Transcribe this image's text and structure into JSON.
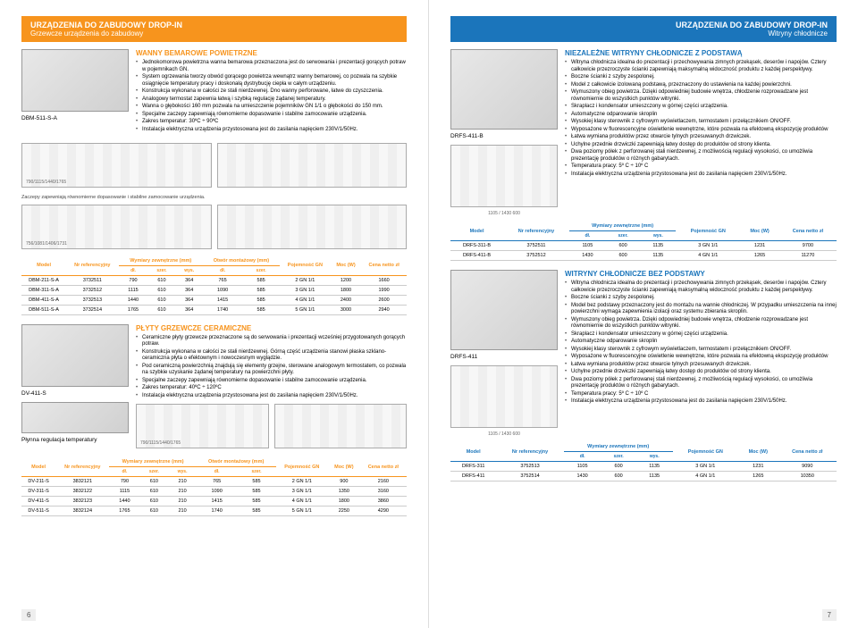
{
  "left": {
    "header_title": "URZĄDZENIA DO ZABUDOWY DROP-IN",
    "header_sub": "Grzewcze urządzenia do zabudowy",
    "sec1": {
      "title": "WANNY BEMAROWE POWIETRZNE",
      "label": "DBM-511-S-A",
      "bullets": [
        "Jednokomorowa powietrzna wanna bemarowa przeznaczona jest do serwowania i prezentacji gorących potraw w pojemnikach GN.",
        "System ogrzewania tworzy obwód gorącego powietrza wewnątrz wanny bemarowej, co pozwala na szybkie osiągnięcie temperatury pracy i doskonałą dystrybucję ciepła w całym urządzeniu.",
        "Konstrukcja wykonana w całości ze stali nierdzewnej. Dno wanny perforowane, łatwe do czyszczenia.",
        "Analogowy termostat zapewnia łatwą i szybką regulację żądanej temperatury.",
        "Wanna o głębokości 160 mm pozwala na umieszczenie pojemników GN 1/1 o głębokości do 150 mm.",
        "Specjalne zaczepy zapewniają równomierne dopasowanie i stabilne zamocowanie urządzenia.",
        "Zakres temperatur: 30ºC ÷ 90ºC",
        "Instalacja elektryczna urządzenia przystosowana jest do zasilania napięciem 230V/1/50Hz."
      ],
      "diag1_dim": "790/1115/1440/1765",
      "diag2_dim": "756/1081/1406/1731",
      "diag_note": "Zaczepy zapewniają równomierne dopasowanie i stabilne zamocowanie urządzenia."
    },
    "table1": {
      "cols_top": [
        "Model",
        "Nr referencyjny",
        "Wymiary zewnętrzne (mm)",
        "Otwór montażowy (mm)",
        "Pojemność GN",
        "Moc (W)",
        "Cena netto zł"
      ],
      "cols_sub": [
        "",
        "",
        "dł.",
        "szer.",
        "wys.",
        "dł.",
        "szer.",
        "",
        "",
        ""
      ],
      "rows": [
        [
          "DBM-211-S-A",
          "3732511",
          "790",
          "610",
          "364",
          "765",
          "585",
          "2 GN 1/1",
          "1200",
          "1660"
        ],
        [
          "DBM-311-S-A",
          "3732512",
          "1115",
          "610",
          "364",
          "1090",
          "585",
          "3 GN 1/1",
          "1800",
          "1990"
        ],
        [
          "DBM-411-S-A",
          "3732513",
          "1440",
          "610",
          "364",
          "1415",
          "585",
          "4 GN 1/1",
          "2400",
          "2600"
        ],
        [
          "DBM-511-S-A",
          "3732514",
          "1765",
          "610",
          "364",
          "1740",
          "585",
          "5 GN 1/1",
          "3000",
          "2940"
        ]
      ]
    },
    "sec2": {
      "title": "PŁYTY GRZEWCZE CERAMICZNE",
      "label": "DV-411-S",
      "sublabel": "Płynna regulacja temperatury",
      "bullets": [
        "Ceramiczne płyty grzewcze przeznaczone są do serwowania i prezentacji wcześniej przygotowanych gorących potraw.",
        "Konstrukcja wykonana w całości ze stali nierdzewnej. Górną część urządzenia stanowi płaska szklano-ceramiczna płyta o efektownym i nowoczesnym wyglądzie.",
        "Pod ceramiczną powierzchnią znajdują się elementy grzejne, sterowane analogowym termostatem, co pozwala na szybkie uzyskanie żądanej temperatury na powierzchni płyty.",
        "Specjalne zaczepy zapewniają równomierne dopasowanie i stabilne zamocowanie urządzenia.",
        "Zakres temperatur: 40ºC ÷ 120ºC",
        "Instalacja elektryczna urządzenia przystosowana jest do zasilania napięciem 230V/1/50Hz."
      ],
      "diag1_dim": "790/1115/1440/1765",
      "diag2_dim": "756/1081/1406/1731"
    },
    "table2": {
      "rows": [
        [
          "DV-211-S",
          "3832121",
          "790",
          "610",
          "210",
          "765",
          "585",
          "2 GN 1/1",
          "900",
          "2160"
        ],
        [
          "DV-311-S",
          "3832122",
          "1115",
          "610",
          "210",
          "1090",
          "585",
          "3 GN 1/1",
          "1350",
          "3160"
        ],
        [
          "DV-411-S",
          "3832123",
          "1440",
          "610",
          "210",
          "1415",
          "585",
          "4 GN 1/1",
          "1800",
          "3860"
        ],
        [
          "DV-511-S",
          "3832124",
          "1765",
          "610",
          "210",
          "1740",
          "585",
          "5 GN 1/1",
          "2250",
          "4290"
        ]
      ]
    },
    "page_num": "6"
  },
  "right": {
    "header_title": "URZĄDZENIA DO ZABUDOWY DROP-IN",
    "header_sub": "Witryny chłodnicze",
    "sec1": {
      "title": "NIEZALEŻNE WITRYNY CHŁODNICZE Z PODSTAWĄ",
      "label": "DRFS-411-B",
      "dims": "1105 / 1430        600",
      "bullets": [
        "Witryna chłodnicza idealna do prezentacji i przechowywania zimnych przekąsek, deserów i napojów. Cztery całkowicie przezroczyste ścianki zapewniają maksymalną widoczność produktu z każdej perspektywy.",
        "Boczne ścianki z szyby zespolonej.",
        "Model z całkowicie izolowaną podstawą, przeznaczony do ustawienia na każdej powierzchni.",
        "Wymuszony obieg powietrza. Dzięki odpowiedniej budowie wnętrza, chłodzenie rozprowadzane jest równomiernie do wszystkich punktów witrynki.",
        "Skraplacz i kondensator umieszczony w górnej części urządzenia.",
        "Automatyczne odparowanie skroplin",
        "Wysokiej klasy sterownik z cyfrowym wyświetlaczem, termostatem i przełącznikiem ON/OFF.",
        "Wyposażone w fluorescencyjne oświetlenie wewnętrzne, które pozwala na efektowną ekspozycję produktów",
        "Łatwa wymiana produktów przez otwarcie tylnych przesuwanych drzwiczek.",
        "Uchylne przednie drzwiczki zapewniają łatwy dostęp do produktów od strony klienta.",
        "Dwa poziomy półek z perforowanej stali nierdzewnej, z możliwością regulacji wysokości, co umożliwia prezentację produktów o różnych gabarytach.",
        "Temperatura pracy: 5º C ÷ 10º C",
        "Instalacja elektryczna urządzenia przystosowana jest do zasilania napięciem 230V/1/50Hz."
      ]
    },
    "table1": {
      "cols_top": [
        "Model",
        "Nr referencyjny",
        "Wymiary zewnętrzne (mm)",
        "Pojemność GN",
        "Moc (W)",
        "Cena netto zł"
      ],
      "cols_sub": [
        "",
        "",
        "dł.",
        "szer.",
        "wys.",
        "",
        "",
        ""
      ],
      "rows": [
        [
          "DRFS-311-B",
          "3752511",
          "1105",
          "600",
          "1135",
          "3 GN 1/1",
          "1231",
          "9700"
        ],
        [
          "DRFS-411-B",
          "3752512",
          "1430",
          "600",
          "1135",
          "4 GN 1/1",
          "1265",
          "11270"
        ]
      ]
    },
    "sec2": {
      "title": "WITRYNY CHŁODNICZE BEZ PODSTAWY",
      "label": "DRFS-411",
      "dims": "1105 / 1430        600",
      "bullets": [
        "Witryna chłodnicza idealna do prezentacji i przechowywania zimnych przekąsek, deserów i napojów. Cztery całkowicie przezroczyste ścianki zapewniają maksymalną widoczność produktu z każdej perspektywy.",
        "Boczne ścianki z szyby zespolonej.",
        "Model bez podstawy przeznaczony jest do montażu na wannie chłodniczej. W przypadku umieszczenia na innej powierzchni wymaga zapewnienia izolacji oraz systemu zbierania skroplin.",
        "Wymuszony obieg powietrza. Dzięki odpowiedniej budowie wnętrza, chłodzenie rozprowadzane jest równomiernie do wszystkich punktów witrynki.",
        "Skraplacz i kondensator umieszczony w górnej części urządzenia.",
        "Automatyczne odparowanie skroplin",
        "Wysokiej klasy sterownik z cyfrowym wyświetlaczem, termostatem i przełącznikiem ON/OFF.",
        "Wyposażone w fluorescencyjne oświetlenie wewnętrzne, które pozwala na efektowną ekspozycję produktów",
        "Łatwa wymiana produktów przez otwarcie tylnych przesuwanych drzwiczek.",
        "Uchylne przednie drzwiczki zapewniają łatwy dostęp do produktów od strony klienta.",
        "Dwa poziomy półek z perforowanej stali nierdzewnej, z możliwością regulacji wysokości, co umożliwia prezentację produktów o różnych gabarytach.",
        "Temperatura pracy: 5º C ÷ 10º C",
        "Instalacja elektryczna urządzenia przystosowana jest do zasilania napięciem 230V/1/50Hz."
      ]
    },
    "table2": {
      "rows": [
        [
          "DRFS-311",
          "3752513",
          "1105",
          "600",
          "1135",
          "3 GN 1/1",
          "1231",
          "9090"
        ],
        [
          "DRFS-411",
          "3752514",
          "1430",
          "600",
          "1135",
          "4 GN 1/1",
          "1265",
          "10350"
        ]
      ]
    },
    "page_num": "7"
  }
}
